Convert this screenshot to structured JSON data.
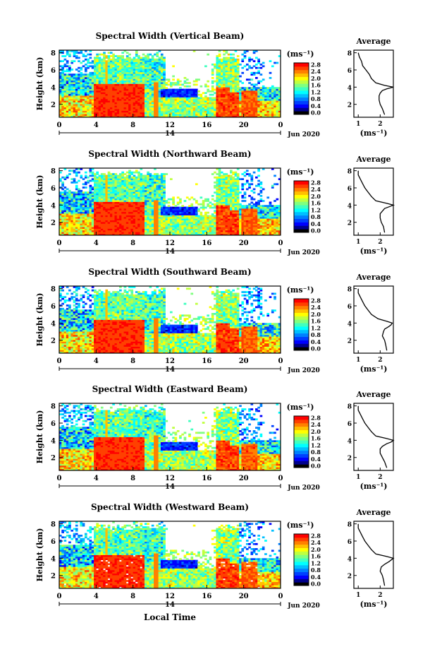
{
  "figure": {
    "xlabel": "Local Time",
    "ylabel": "Height (km)",
    "date_label": "Jun 2020",
    "day_label": "14",
    "colorbar_unit": "(ms⁻¹)",
    "avg_title": "Average",
    "avg_xlabel": "(ms⁻¹)"
  },
  "colors": {
    "jet": [
      "#000000",
      "#00008f",
      "#0000ff",
      "#0040ff",
      "#0080ff",
      "#00bfff",
      "#00ffff",
      "#40ffbf",
      "#80ff80",
      "#bfff40",
      "#ffff00",
      "#ffbf00",
      "#ff8000",
      "#ff4000",
      "#ff0000"
    ]
  },
  "chart_data": [
    {
      "type": "heatmap",
      "title": "Spectral Width (Vertical Beam)",
      "x_ticks": [
        "0",
        "4",
        "8",
        "12",
        "16",
        "20",
        "0"
      ],
      "y_ticks": [
        "2",
        "4",
        "6",
        "8"
      ],
      "colorbar_ticks": [
        "0.0",
        "0.4",
        "0.8",
        "1.2",
        "1.6",
        "2.0",
        "2.4",
        "2.8"
      ],
      "average_profile": {
        "x_ticks": [
          "1",
          "2"
        ],
        "xlim": [
          0.8,
          2.6
        ],
        "y_ticks": [
          "2",
          "4",
          "6",
          "8"
        ],
        "height_km": [
          0.8,
          1.5,
          2.0,
          2.5,
          3.0,
          3.3,
          3.6,
          3.8,
          4.0,
          4.2,
          4.5,
          5.0,
          5.5,
          6.0,
          6.5,
          7.0,
          7.5,
          8.0
        ],
        "width_ms": [
          2.2,
          2.1,
          2.0,
          1.95,
          1.95,
          2.0,
          2.1,
          2.3,
          2.6,
          2.2,
          1.8,
          1.6,
          1.5,
          1.35,
          1.2,
          1.15,
          1.05,
          1.0
        ]
      }
    },
    {
      "type": "heatmap",
      "title": "Spectral Width (Northward Beam)",
      "x_ticks": [
        "0",
        "4",
        "8",
        "12",
        "16",
        "20",
        "0"
      ],
      "y_ticks": [
        "2",
        "4",
        "6",
        "8"
      ],
      "colorbar_ticks": [
        "0.0",
        "0.4",
        "0.8",
        "1.2",
        "1.6",
        "2.0",
        "2.4",
        "2.8"
      ],
      "average_profile": {
        "x_ticks": [
          "1",
          "2"
        ],
        "xlim": [
          0.8,
          2.6
        ],
        "y_ticks": [
          "2",
          "4",
          "6",
          "8"
        ],
        "height_km": [
          0.8,
          1.5,
          2.0,
          2.5,
          3.0,
          3.3,
          3.6,
          3.8,
          4.0,
          4.2,
          4.5,
          5.0,
          5.5,
          6.0,
          6.5,
          7.0,
          7.5,
          8.0
        ],
        "width_ms": [
          2.2,
          2.15,
          2.05,
          2.0,
          2.0,
          2.1,
          2.2,
          2.4,
          2.6,
          2.3,
          1.8,
          1.6,
          1.45,
          1.3,
          1.2,
          1.1,
          1.0,
          1.0
        ]
      }
    },
    {
      "type": "heatmap",
      "title": "Spectral Width (Southward Beam)",
      "x_ticks": [
        "0",
        "4",
        "8",
        "12",
        "16",
        "20",
        "0"
      ],
      "y_ticks": [
        "2",
        "4",
        "6",
        "8"
      ],
      "colorbar_ticks": [
        "0.0",
        "0.4",
        "0.8",
        "1.2",
        "1.6",
        "2.0",
        "2.4",
        "2.8"
      ],
      "average_profile": {
        "x_ticks": [
          "1",
          "2"
        ],
        "xlim": [
          0.8,
          2.6
        ],
        "y_ticks": [
          "2",
          "4",
          "6",
          "8"
        ],
        "height_km": [
          0.8,
          1.5,
          2.0,
          2.5,
          3.0,
          3.3,
          3.6,
          3.8,
          4.0,
          4.2,
          4.5,
          5.0,
          5.5,
          6.0,
          6.5,
          7.0,
          7.5,
          8.0
        ],
        "width_ms": [
          2.3,
          2.25,
          2.2,
          2.1,
          2.15,
          2.2,
          2.4,
          2.5,
          2.55,
          2.3,
          1.9,
          1.6,
          1.45,
          1.3,
          1.2,
          1.1,
          1.0,
          1.0
        ]
      }
    },
    {
      "type": "heatmap",
      "title": "Spectral Width (Eastward Beam)",
      "x_ticks": [
        "0",
        "4",
        "8",
        "12",
        "16",
        "20",
        "0"
      ],
      "y_ticks": [
        "2",
        "4",
        "6",
        "8"
      ],
      "colorbar_ticks": [
        "0.0",
        "0.4",
        "0.8",
        "1.2",
        "1.6",
        "2.0",
        "2.4",
        "2.8"
      ],
      "average_profile": {
        "x_ticks": [
          "1",
          "2"
        ],
        "xlim": [
          0.8,
          2.6
        ],
        "y_ticks": [
          "2",
          "4",
          "6",
          "8"
        ],
        "height_km": [
          0.8,
          1.5,
          2.0,
          2.5,
          3.0,
          3.3,
          3.6,
          3.8,
          4.0,
          4.2,
          4.5,
          5.0,
          5.5,
          6.0,
          6.5,
          7.0,
          7.5,
          8.0
        ],
        "width_ms": [
          2.3,
          2.2,
          2.1,
          2.0,
          2.0,
          2.1,
          2.3,
          2.5,
          2.6,
          2.3,
          1.8,
          1.6,
          1.45,
          1.3,
          1.2,
          1.1,
          1.0,
          1.0
        ]
      }
    },
    {
      "type": "heatmap",
      "title": "Spectral Width (Westward Beam)",
      "x_ticks": [
        "0",
        "4",
        "8",
        "12",
        "16",
        "20",
        "0"
      ],
      "y_ticks": [
        "2",
        "4",
        "6",
        "8"
      ],
      "colorbar_ticks": [
        "0.0",
        "0.4",
        "0.8",
        "1.2",
        "1.6",
        "2.0",
        "2.4",
        "2.8"
      ],
      "average_profile": {
        "x_ticks": [
          "1",
          "2"
        ],
        "xlim": [
          0.8,
          2.6
        ],
        "y_ticks": [
          "2",
          "4",
          "6",
          "8"
        ],
        "height_km": [
          0.8,
          1.5,
          2.0,
          2.5,
          3.0,
          3.3,
          3.6,
          3.8,
          4.0,
          4.2,
          4.5,
          5.0,
          5.5,
          6.0,
          6.5,
          7.0,
          7.5,
          8.0
        ],
        "width_ms": [
          2.2,
          2.15,
          2.1,
          2.0,
          2.05,
          2.2,
          2.4,
          2.5,
          2.6,
          2.3,
          1.8,
          1.6,
          1.45,
          1.3,
          1.2,
          1.1,
          1.0,
          1.0
        ]
      }
    }
  ]
}
